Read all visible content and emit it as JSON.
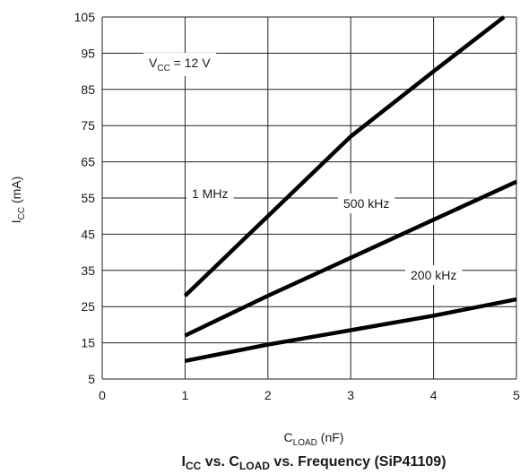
{
  "chart_data": {
    "type": "line",
    "title": {
      "main": "I",
      "main_sub": "CC",
      "mid": " vs. C",
      "mid_sub": "LOAD",
      "rest": " vs. Frequency (SiP41109)"
    },
    "xlabel": {
      "main": "C",
      "sub": "LOAD",
      "rest": " (nF)"
    },
    "ylabel": {
      "main": "I",
      "sub": "CC",
      "rest": " (mA)"
    },
    "xlim": [
      0,
      5
    ],
    "ylim": [
      5,
      105
    ],
    "xticks": [
      "0",
      "1",
      "2",
      "3",
      "4",
      "5"
    ],
    "yticks": [
      "5",
      "15",
      "25",
      "35",
      "45",
      "55",
      "65",
      "75",
      "85",
      "95",
      "105"
    ],
    "grid": true,
    "condition": {
      "main": "V",
      "sub": "CC",
      "rest": " = 12 V"
    },
    "series": [
      {
        "name": "1 MHz",
        "x": [
          1,
          2,
          3,
          4,
          4.85
        ],
        "y": [
          28,
          50,
          72,
          90,
          105
        ]
      },
      {
        "name": "500 kHz",
        "x": [
          1,
          2,
          3,
          4,
          5
        ],
        "y": [
          17,
          28,
          38.5,
          49,
          59.5
        ]
      },
      {
        "name": "200 kHz",
        "x": [
          1,
          2,
          3,
          4,
          5
        ],
        "y": [
          10,
          14.5,
          18.5,
          22.5,
          27
        ]
      }
    ]
  }
}
